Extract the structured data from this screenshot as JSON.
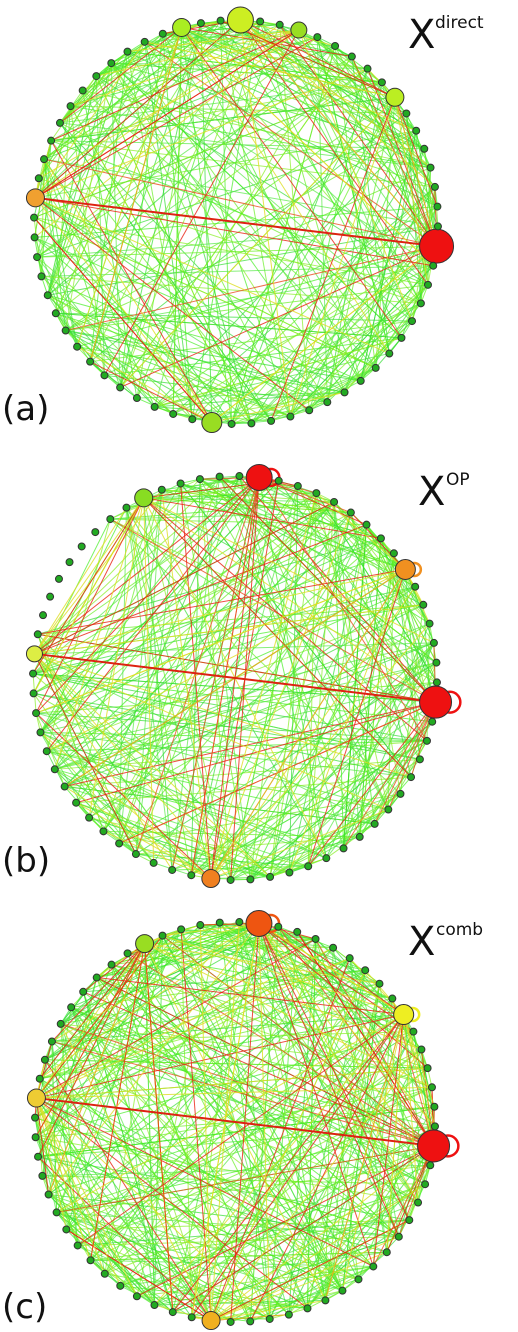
{
  "panels": [
    {
      "label": "(a)",
      "symbol": "X",
      "superscript": "direct"
    },
    {
      "label": "(b)",
      "symbol": "X",
      "superscript": "OP"
    },
    {
      "label": "(c)",
      "symbol": "X",
      "superscript": "comb"
    }
  ]
}
